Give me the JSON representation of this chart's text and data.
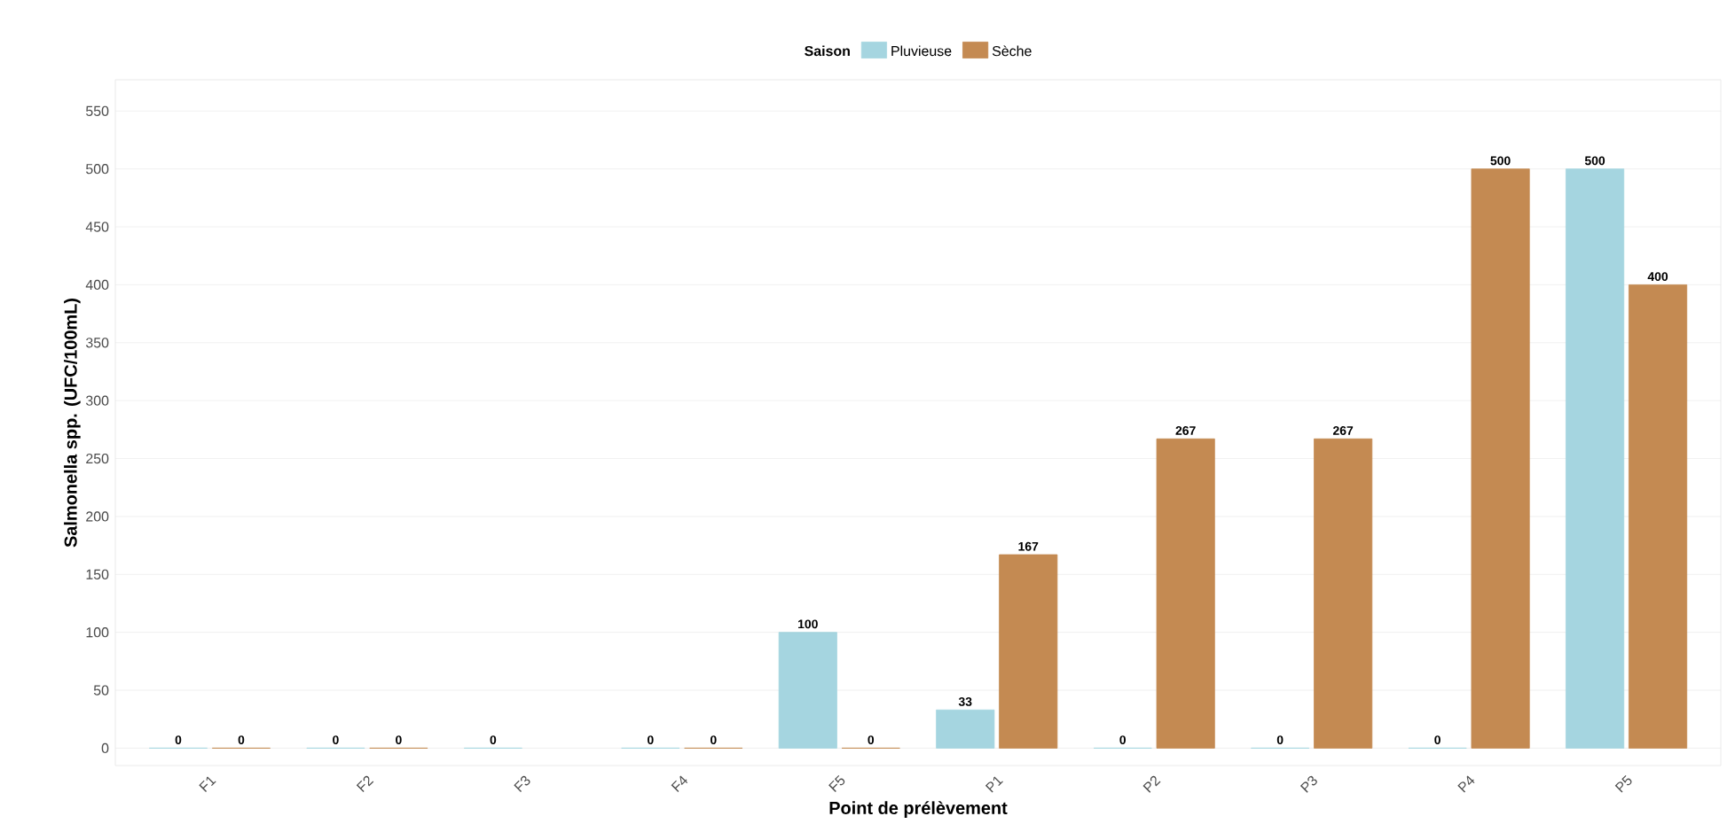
{
  "chart_data": {
    "type": "bar",
    "xlabel": "Point de prélèvement",
    "ylabel": "Salmonella spp. (UFC/100mL)",
    "legend_title": "Saison",
    "categories": [
      "F1",
      "F2",
      "F3",
      "F4",
      "F5",
      "P1",
      "P2",
      "P3",
      "P4",
      "P5"
    ],
    "series": [
      {
        "name": "Pluvieuse",
        "color": "#a5d5e0",
        "values": [
          0,
          0,
          0,
          0,
          100,
          33,
          0,
          0,
          0,
          500
        ]
      },
      {
        "name": "Sèche",
        "color": "#c48a52",
        "values": [
          0,
          0,
          null,
          0,
          0,
          167,
          267,
          267,
          500,
          400
        ]
      }
    ],
    "ylim": [
      -15,
      577
    ],
    "yticks": [
      0,
      50,
      100,
      150,
      200,
      250,
      300,
      350,
      400,
      450,
      500,
      550
    ],
    "grid": "y",
    "legend": "top",
    "data_labels": true
  }
}
